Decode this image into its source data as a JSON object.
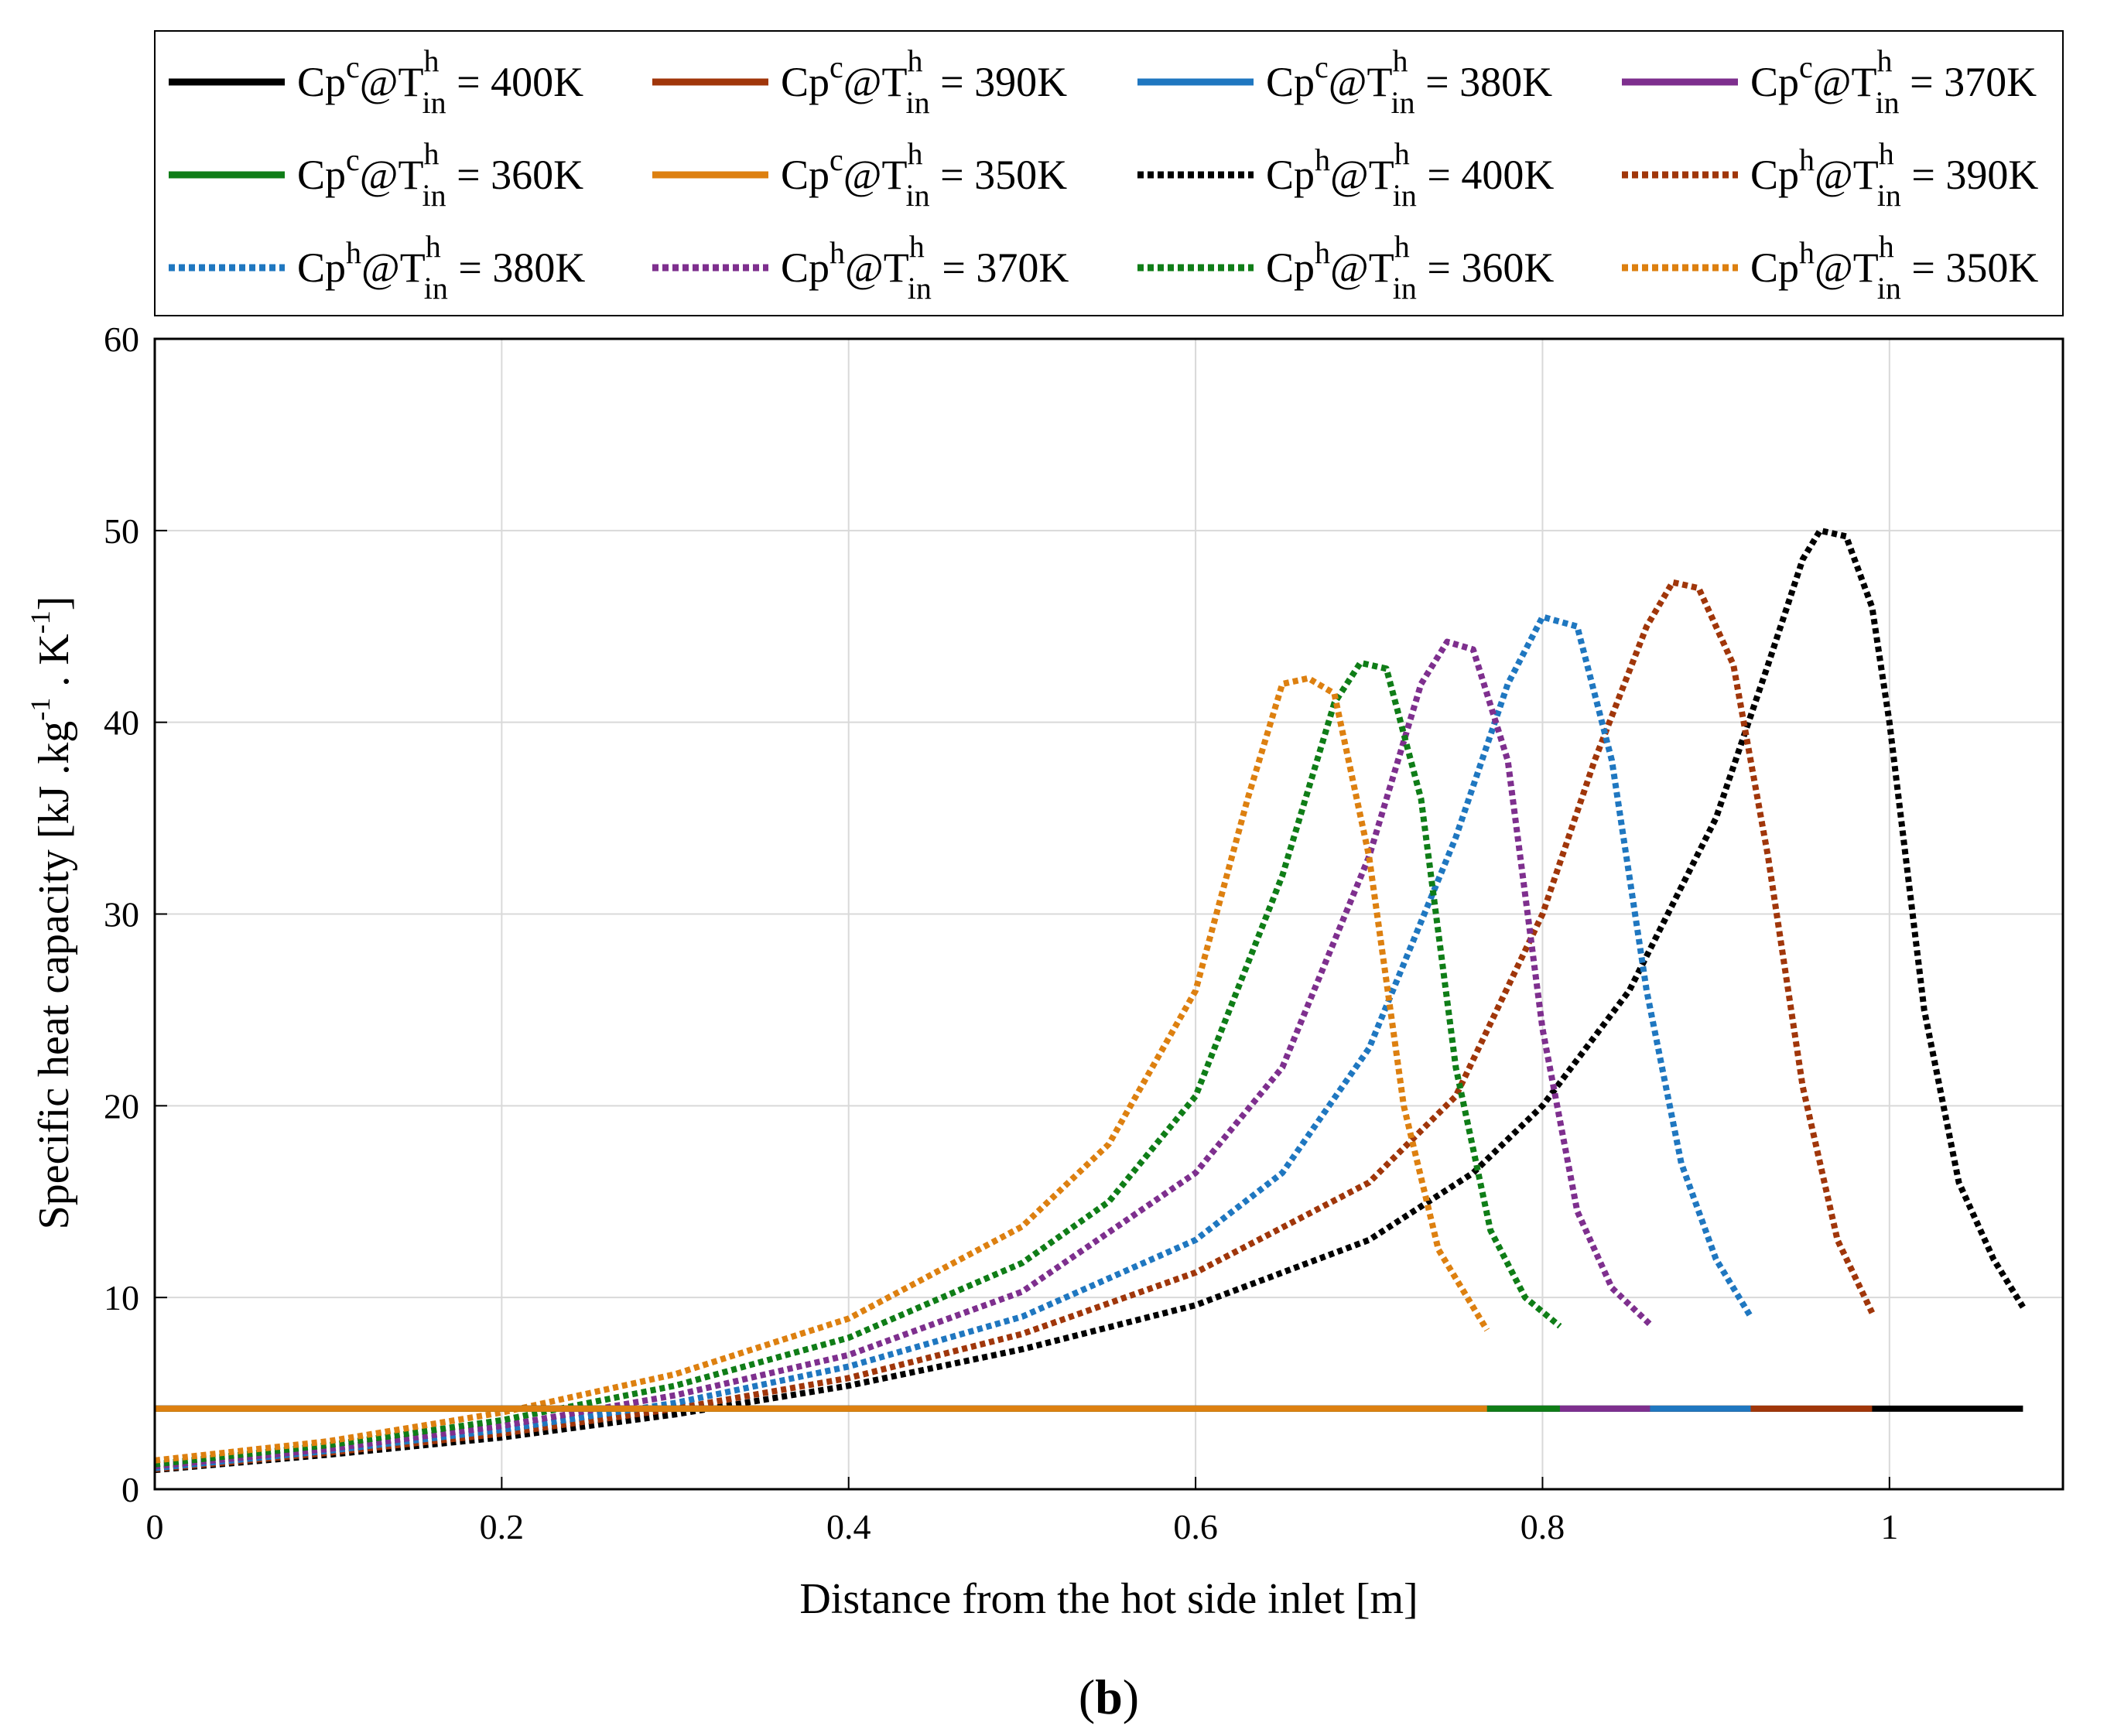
{
  "chart_data": {
    "type": "line",
    "xlabel": "Distance from the hot side inlet [m]",
    "ylabel": "Specific heat capacity [kJ .kg",
    "ylabel_sup1": "-1",
    "ylabel_mid": " . K",
    "ylabel_sup2": "-1",
    "ylabel_end": "]",
    "panel_label_open": "(",
    "panel_label_letter": "b",
    "panel_label_close": ")",
    "xlim": [
      0,
      1.1
    ],
    "ylim": [
      0,
      60
    ],
    "xticks": [
      0,
      0.2,
      0.4,
      0.6,
      0.8,
      1
    ],
    "xtick_labels": [
      "0",
      "0.2",
      "0.4",
      "0.6",
      "0.8",
      "1"
    ],
    "yticks": [
      0,
      10,
      20,
      30,
      40,
      50,
      60
    ],
    "ytick_labels": [
      "0",
      "10",
      "20",
      "30",
      "40",
      "50",
      "60"
    ],
    "grid": true,
    "legend_position": "top",
    "colors": {
      "400": "#000000",
      "390": "#a0360a",
      "380": "#1f77c0",
      "370": "#7e2f8e",
      "360": "#0f7d17",
      "350": "#dd8010"
    },
    "series": [
      {
        "name": "Cp^c@T^h_in = 400K",
        "base": "Cp",
        "sup": "c",
        "t_sup": "h",
        "t_sub": "in",
        "rest": " = 400K",
        "style": "solid",
        "color_key": "400",
        "x": [
          0.0,
          1.077
        ],
        "y": [
          4.2,
          4.2
        ]
      },
      {
        "name": "Cp^c@T^h_in = 390K",
        "base": "Cp",
        "sup": "c",
        "t_sup": "h",
        "t_sub": "in",
        "rest": " = 390K",
        "style": "solid",
        "color_key": "390",
        "x": [
          0.0,
          0.99
        ],
        "y": [
          4.2,
          4.2
        ]
      },
      {
        "name": "Cp^c@T^h_in = 380K",
        "base": "Cp",
        "sup": "c",
        "t_sup": "h",
        "t_sub": "in",
        "rest": " = 380K",
        "style": "solid",
        "color_key": "380",
        "x": [
          0.0,
          0.92
        ],
        "y": [
          4.2,
          4.2
        ]
      },
      {
        "name": "Cp^c@T^h_in = 370K",
        "base": "Cp",
        "sup": "c",
        "t_sup": "h",
        "t_sub": "in",
        "rest": " = 370K",
        "style": "solid",
        "color_key": "370",
        "x": [
          0.0,
          0.862
        ],
        "y": [
          4.2,
          4.2
        ]
      },
      {
        "name": "Cp^c@T^h_in = 360K",
        "base": "Cp",
        "sup": "c",
        "t_sup": "h",
        "t_sub": "in",
        "rest": " = 360K",
        "style": "solid",
        "color_key": "360",
        "x": [
          0.0,
          0.81
        ],
        "y": [
          4.2,
          4.2
        ]
      },
      {
        "name": "Cp^c@T^h_in = 350K",
        "base": "Cp",
        "sup": "c",
        "t_sup": "h",
        "t_sub": "in",
        "rest": " = 350K",
        "style": "solid",
        "color_key": "350",
        "x": [
          0.0,
          0.768
        ],
        "y": [
          4.2,
          4.2
        ]
      },
      {
        "name": "Cp^h@T^h_in = 400K",
        "base": "Cp",
        "sup": "h",
        "t_sup": "h",
        "t_sub": "in",
        "rest": " = 400K",
        "style": "dotted",
        "color_key": "400",
        "x": [
          0.0,
          0.1,
          0.2,
          0.3,
          0.4,
          0.5,
          0.6,
          0.7,
          0.76,
          0.8,
          0.85,
          0.9,
          0.93,
          0.95,
          0.96,
          0.975,
          0.99,
          1.0,
          1.02,
          1.04,
          1.06,
          1.077
        ],
        "y": [
          1.0,
          1.8,
          2.7,
          3.9,
          5.4,
          7.3,
          9.6,
          13.0,
          16.5,
          20.0,
          26.0,
          35.0,
          43.0,
          48.5,
          50.0,
          49.7,
          46.0,
          40.0,
          25.0,
          16.0,
          12.0,
          9.5
        ]
      },
      {
        "name": "Cp^h@T^h_in = 390K",
        "base": "Cp",
        "sup": "h",
        "t_sup": "h",
        "t_sub": "in",
        "rest": " = 390K",
        "style": "dotted",
        "color_key": "390",
        "x": [
          0.0,
          0.1,
          0.2,
          0.3,
          0.4,
          0.5,
          0.6,
          0.7,
          0.75,
          0.8,
          0.83,
          0.86,
          0.875,
          0.89,
          0.91,
          0.93,
          0.95,
          0.97,
          0.99
        ],
        "y": [
          1.05,
          1.9,
          2.9,
          4.2,
          5.8,
          8.1,
          11.3,
          16.0,
          20.5,
          30.0,
          38.0,
          45.0,
          47.3,
          47.0,
          43.0,
          33.0,
          21.0,
          13.0,
          9.2
        ]
      },
      {
        "name": "Cp^h@T^h_in = 380K",
        "base": "Cp",
        "sup": "h",
        "t_sup": "h",
        "t_sub": "in",
        "rest": " = 380K",
        "style": "dotted",
        "color_key": "380",
        "x": [
          0.0,
          0.1,
          0.2,
          0.3,
          0.4,
          0.5,
          0.6,
          0.65,
          0.7,
          0.75,
          0.78,
          0.8,
          0.82,
          0.84,
          0.86,
          0.88,
          0.9,
          0.92
        ],
        "y": [
          1.1,
          2.0,
          3.1,
          4.5,
          6.4,
          9.0,
          13.0,
          16.5,
          23.0,
          34.0,
          42.0,
          45.5,
          45.0,
          38.0,
          26.0,
          17.0,
          12.0,
          9.0
        ]
      },
      {
        "name": "Cp^h@T^h_in = 370K",
        "base": "Cp",
        "sup": "h",
        "t_sup": "h",
        "t_sub": "in",
        "rest": " = 370K",
        "style": "dotted",
        "color_key": "370",
        "x": [
          0.0,
          0.1,
          0.2,
          0.3,
          0.4,
          0.5,
          0.6,
          0.65,
          0.7,
          0.73,
          0.745,
          0.76,
          0.78,
          0.8,
          0.82,
          0.84,
          0.862
        ],
        "y": [
          1.2,
          2.1,
          3.3,
          4.9,
          7.0,
          10.3,
          16.5,
          22.0,
          33.0,
          42.0,
          44.2,
          43.8,
          38.0,
          24.0,
          14.5,
          10.5,
          8.6
        ]
      },
      {
        "name": "Cp^h@T^h_in = 360K",
        "base": "Cp",
        "sup": "h",
        "t_sup": "h",
        "t_sub": "in",
        "rest": " = 360K",
        "style": "dotted",
        "color_key": "360",
        "x": [
          0.0,
          0.1,
          0.2,
          0.3,
          0.4,
          0.5,
          0.55,
          0.6,
          0.65,
          0.68,
          0.695,
          0.71,
          0.73,
          0.75,
          0.77,
          0.79,
          0.81
        ],
        "y": [
          1.3,
          2.3,
          3.6,
          5.4,
          7.9,
          11.8,
          15.0,
          20.5,
          32.0,
          41.0,
          43.1,
          42.8,
          36.0,
          22.0,
          13.5,
          10.0,
          8.5
        ]
      },
      {
        "name": "Cp^h@T^h_in = 350K",
        "base": "Cp",
        "sup": "h",
        "t_sup": "h",
        "t_sub": "in",
        "rest": " = 350K",
        "style": "dotted",
        "color_key": "350",
        "x": [
          0.0,
          0.1,
          0.2,
          0.3,
          0.4,
          0.5,
          0.55,
          0.6,
          0.63,
          0.65,
          0.665,
          0.68,
          0.7,
          0.72,
          0.74,
          0.768
        ],
        "y": [
          1.5,
          2.5,
          4.0,
          6.0,
          8.9,
          13.7,
          18.0,
          26.0,
          36.0,
          42.0,
          42.3,
          41.5,
          33.0,
          20.0,
          12.5,
          8.3
        ]
      }
    ],
    "legend_order": [
      0,
      1,
      2,
      3,
      4,
      5,
      6,
      7,
      8,
      9,
      10,
      11
    ]
  }
}
